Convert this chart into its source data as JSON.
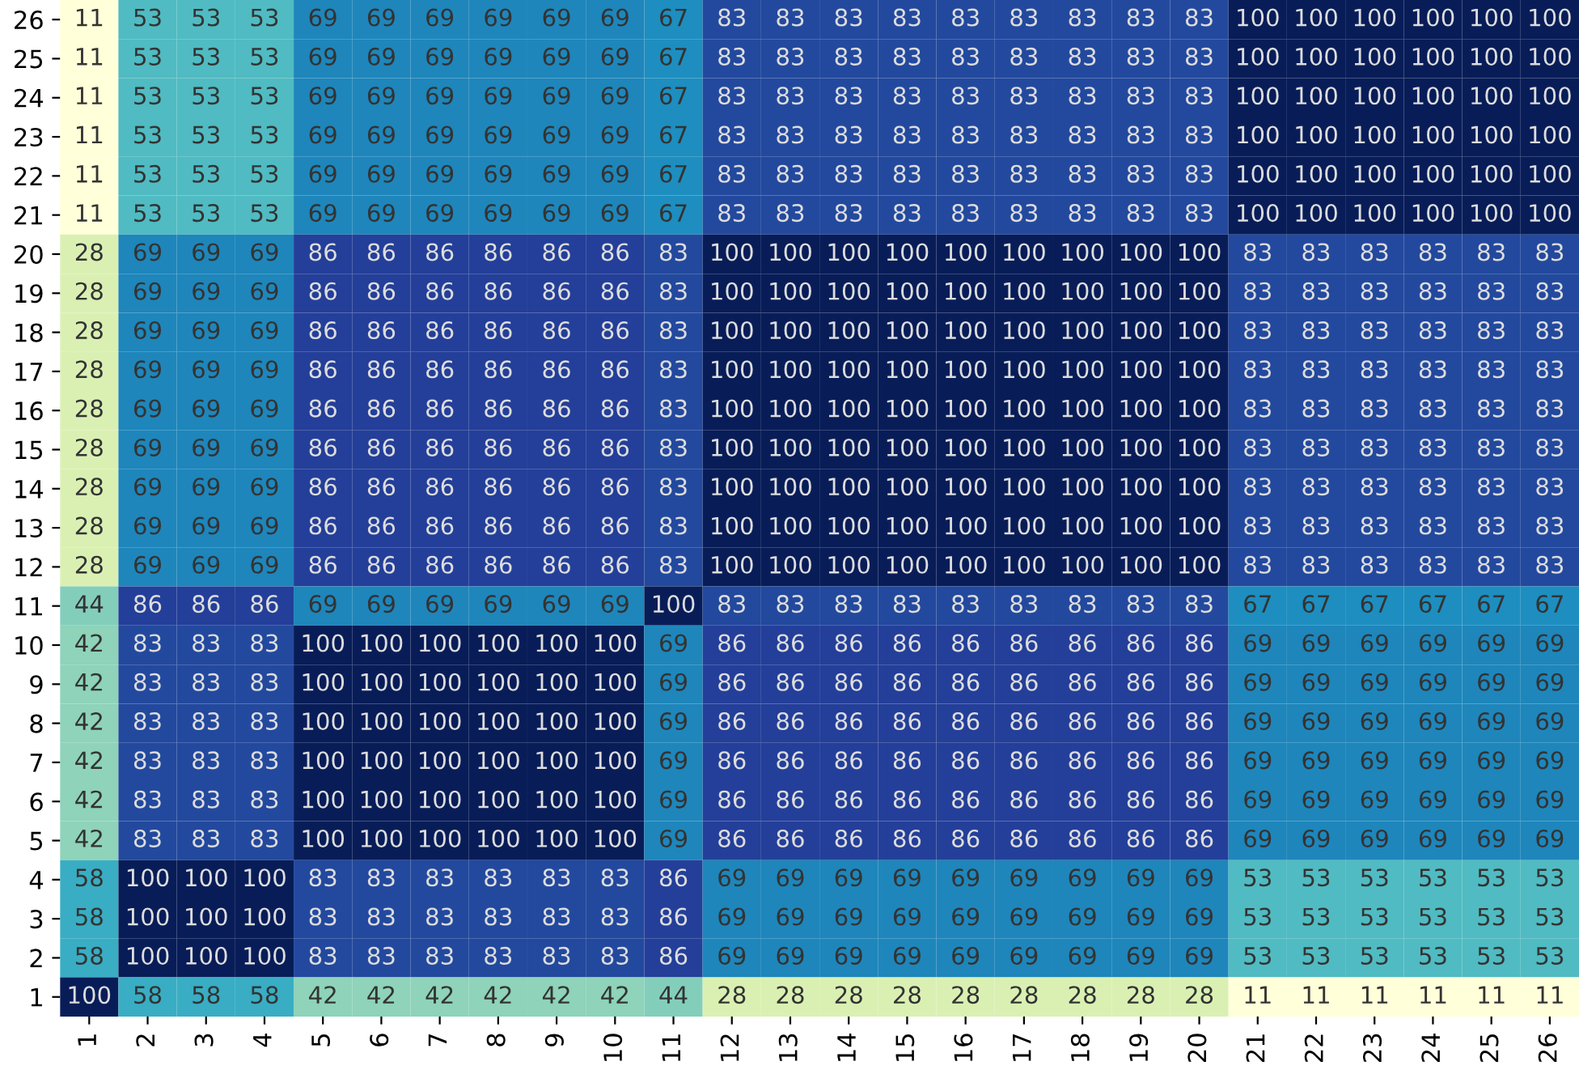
{
  "chart_data": {
    "type": "heatmap",
    "categories": [
      "1",
      "2",
      "3",
      "4",
      "5",
      "6",
      "7",
      "8",
      "9",
      "10",
      "11",
      "12",
      "13",
      "14",
      "15",
      "16",
      "17",
      "18",
      "19",
      "20",
      "21",
      "22",
      "23",
      "24",
      "25",
      "26"
    ],
    "y_categories": [
      "26",
      "25",
      "24",
      "23",
      "22",
      "21",
      "20",
      "19",
      "18",
      "17",
      "16",
      "15",
      "14",
      "13",
      "12",
      "11",
      "10",
      "9",
      "8",
      "7",
      "6",
      "5",
      "4",
      "3",
      "2",
      "1"
    ],
    "cells": [
      [
        11,
        53,
        53,
        53,
        69,
        69,
        69,
        69,
        69,
        69,
        67,
        83,
        83,
        83,
        83,
        83,
        83,
        83,
        83,
        83,
        100,
        100,
        100,
        100,
        100,
        100
      ],
      [
        11,
        53,
        53,
        53,
        69,
        69,
        69,
        69,
        69,
        69,
        67,
        83,
        83,
        83,
        83,
        83,
        83,
        83,
        83,
        83,
        100,
        100,
        100,
        100,
        100,
        100
      ],
      [
        11,
        53,
        53,
        53,
        69,
        69,
        69,
        69,
        69,
        69,
        67,
        83,
        83,
        83,
        83,
        83,
        83,
        83,
        83,
        83,
        100,
        100,
        100,
        100,
        100,
        100
      ],
      [
        11,
        53,
        53,
        53,
        69,
        69,
        69,
        69,
        69,
        69,
        67,
        83,
        83,
        83,
        83,
        83,
        83,
        83,
        83,
        83,
        100,
        100,
        100,
        100,
        100,
        100
      ],
      [
        11,
        53,
        53,
        53,
        69,
        69,
        69,
        69,
        69,
        69,
        67,
        83,
        83,
        83,
        83,
        83,
        83,
        83,
        83,
        83,
        100,
        100,
        100,
        100,
        100,
        100
      ],
      [
        11,
        53,
        53,
        53,
        69,
        69,
        69,
        69,
        69,
        69,
        67,
        83,
        83,
        83,
        83,
        83,
        83,
        83,
        83,
        83,
        100,
        100,
        100,
        100,
        100,
        100
      ],
      [
        28,
        69,
        69,
        69,
        86,
        86,
        86,
        86,
        86,
        86,
        83,
        100,
        100,
        100,
        100,
        100,
        100,
        100,
        100,
        100,
        83,
        83,
        83,
        83,
        83,
        83
      ],
      [
        28,
        69,
        69,
        69,
        86,
        86,
        86,
        86,
        86,
        86,
        83,
        100,
        100,
        100,
        100,
        100,
        100,
        100,
        100,
        100,
        83,
        83,
        83,
        83,
        83,
        83
      ],
      [
        28,
        69,
        69,
        69,
        86,
        86,
        86,
        86,
        86,
        86,
        83,
        100,
        100,
        100,
        100,
        100,
        100,
        100,
        100,
        100,
        83,
        83,
        83,
        83,
        83,
        83
      ],
      [
        28,
        69,
        69,
        69,
        86,
        86,
        86,
        86,
        86,
        86,
        83,
        100,
        100,
        100,
        100,
        100,
        100,
        100,
        100,
        100,
        83,
        83,
        83,
        83,
        83,
        83
      ],
      [
        28,
        69,
        69,
        69,
        86,
        86,
        86,
        86,
        86,
        86,
        83,
        100,
        100,
        100,
        100,
        100,
        100,
        100,
        100,
        100,
        83,
        83,
        83,
        83,
        83,
        83
      ],
      [
        28,
        69,
        69,
        69,
        86,
        86,
        86,
        86,
        86,
        86,
        83,
        100,
        100,
        100,
        100,
        100,
        100,
        100,
        100,
        100,
        83,
        83,
        83,
        83,
        83,
        83
      ],
      [
        28,
        69,
        69,
        69,
        86,
        86,
        86,
        86,
        86,
        86,
        83,
        100,
        100,
        100,
        100,
        100,
        100,
        100,
        100,
        100,
        83,
        83,
        83,
        83,
        83,
        83
      ],
      [
        28,
        69,
        69,
        69,
        86,
        86,
        86,
        86,
        86,
        86,
        83,
        100,
        100,
        100,
        100,
        100,
        100,
        100,
        100,
        100,
        83,
        83,
        83,
        83,
        83,
        83
      ],
      [
        28,
        69,
        69,
        69,
        86,
        86,
        86,
        86,
        86,
        86,
        83,
        100,
        100,
        100,
        100,
        100,
        100,
        100,
        100,
        100,
        83,
        83,
        83,
        83,
        83,
        83
      ],
      [
        44,
        86,
        86,
        86,
        69,
        69,
        69,
        69,
        69,
        69,
        100,
        83,
        83,
        83,
        83,
        83,
        83,
        83,
        83,
        83,
        67,
        67,
        67,
        67,
        67,
        67
      ],
      [
        42,
        83,
        83,
        83,
        100,
        100,
        100,
        100,
        100,
        100,
        69,
        86,
        86,
        86,
        86,
        86,
        86,
        86,
        86,
        86,
        69,
        69,
        69,
        69,
        69,
        69
      ],
      [
        42,
        83,
        83,
        83,
        100,
        100,
        100,
        100,
        100,
        100,
        69,
        86,
        86,
        86,
        86,
        86,
        86,
        86,
        86,
        86,
        69,
        69,
        69,
        69,
        69,
        69
      ],
      [
        42,
        83,
        83,
        83,
        100,
        100,
        100,
        100,
        100,
        100,
        69,
        86,
        86,
        86,
        86,
        86,
        86,
        86,
        86,
        86,
        69,
        69,
        69,
        69,
        69,
        69
      ],
      [
        42,
        83,
        83,
        83,
        100,
        100,
        100,
        100,
        100,
        100,
        69,
        86,
        86,
        86,
        86,
        86,
        86,
        86,
        86,
        86,
        69,
        69,
        69,
        69,
        69,
        69
      ],
      [
        42,
        83,
        83,
        83,
        100,
        100,
        100,
        100,
        100,
        100,
        69,
        86,
        86,
        86,
        86,
        86,
        86,
        86,
        86,
        86,
        69,
        69,
        69,
        69,
        69,
        69
      ],
      [
        42,
        83,
        83,
        83,
        100,
        100,
        100,
        100,
        100,
        100,
        69,
        86,
        86,
        86,
        86,
        86,
        86,
        86,
        86,
        86,
        69,
        69,
        69,
        69,
        69,
        69
      ],
      [
        58,
        100,
        100,
        100,
        83,
        83,
        83,
        83,
        83,
        83,
        86,
        69,
        69,
        69,
        69,
        69,
        69,
        69,
        69,
        69,
        53,
        53,
        53,
        53,
        53,
        53
      ],
      [
        58,
        100,
        100,
        100,
        83,
        83,
        83,
        83,
        83,
        83,
        86,
        69,
        69,
        69,
        69,
        69,
        69,
        69,
        69,
        69,
        53,
        53,
        53,
        53,
        53,
        53
      ],
      [
        58,
        100,
        100,
        100,
        83,
        83,
        83,
        83,
        83,
        83,
        86,
        69,
        69,
        69,
        69,
        69,
        69,
        69,
        69,
        69,
        53,
        53,
        53,
        53,
        53,
        53
      ],
      [
        100,
        58,
        58,
        58,
        42,
        42,
        42,
        42,
        42,
        42,
        44,
        28,
        28,
        28,
        28,
        28,
        28,
        28,
        28,
        28,
        11,
        11,
        11,
        11,
        11,
        11
      ]
    ],
    "data_labels": true
  }
}
